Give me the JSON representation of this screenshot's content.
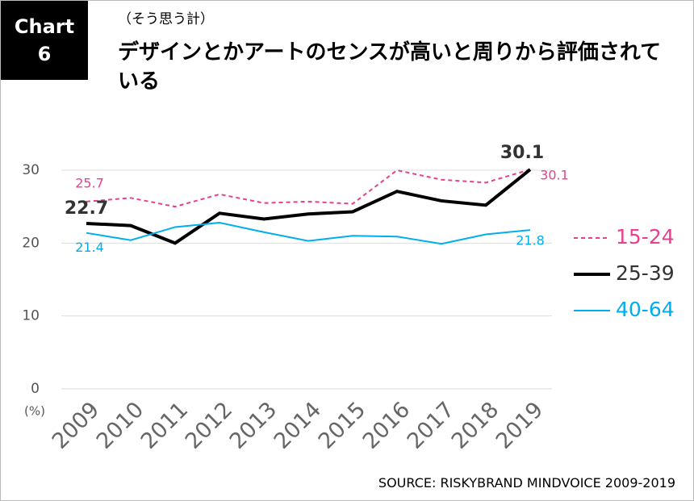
{
  "chart_data": {
    "type": "line",
    "badge": "Chart 6",
    "subtitle": "（そう思う計）",
    "title": "デザインとかアートのセンスが高いと周りから評価されている",
    "categories": [
      "2009",
      "2010",
      "2011",
      "2012",
      "2013",
      "2014",
      "2015",
      "2016",
      "2017",
      "2018",
      "2019"
    ],
    "series": [
      {
        "name": "15-24",
        "color": "#e8408f",
        "dashed": true,
        "values": [
          25.7,
          26.2,
          25.0,
          26.7,
          25.5,
          25.7,
          25.4,
          30.0,
          28.7,
          28.3,
          30.1
        ]
      },
      {
        "name": "25-39",
        "color": "#000000",
        "dashed": false,
        "values": [
          22.7,
          22.4,
          20.0,
          24.1,
          23.3,
          24.0,
          24.3,
          27.1,
          25.8,
          25.2,
          30.1
        ]
      },
      {
        "name": "40-64",
        "color": "#00aeef",
        "dashed": false,
        "values": [
          21.4,
          20.4,
          22.2,
          22.8,
          21.5,
          20.3,
          21.0,
          20.9,
          19.9,
          21.2,
          21.8
        ]
      }
    ],
    "ylim": [
      0,
      30
    ],
    "yticks": [
      0,
      10,
      20,
      30
    ],
    "y_unit": "(%)",
    "grid": true,
    "source": "SOURCE: RISKYBRAND MINDVOICE 2009-2019"
  }
}
